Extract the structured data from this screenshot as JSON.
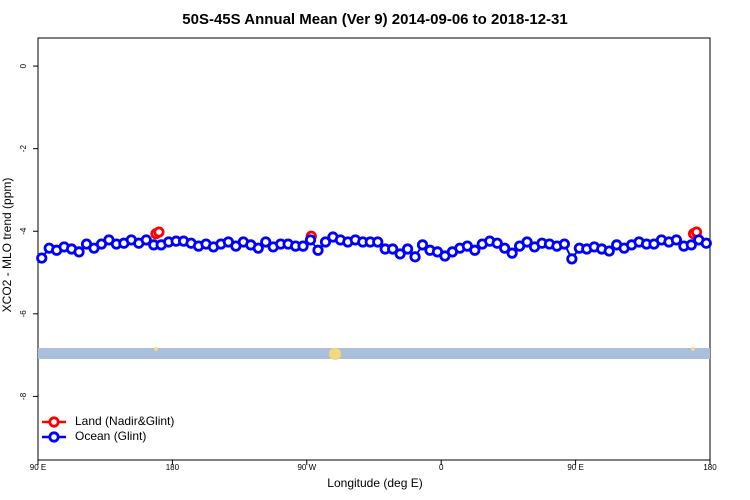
{
  "chart_data": {
    "type": "scatter",
    "title": "50S-45S Annual Mean (Ver 9)   2014-09-06 to 2018-12-31",
    "x_label": "Longitude (deg E)",
    "y_label": "XCO2 - MLO trend (ppm)",
    "xlim": [
      90,
      540
    ],
    "ylim": [
      -9.54,
      0.68
    ],
    "xticks": [
      {
        "value": 90,
        "label": "90 E"
      },
      180,
      {
        "value": 270,
        "label": "90 W"
      },
      {
        "value": 360,
        "label": "0"
      },
      {
        "value": 450,
        "label": "90 E"
      },
      {
        "value": 540,
        "label": "180"
      }
    ],
    "yticks": [
      0,
      -2,
      -4,
      -6,
      -8
    ],
    "legend": "bottom-left",
    "series": [
      {
        "name": "Land (Nadir&Glint)",
        "color": "#ff0000",
        "x": [
          169,
          171,
          273,
          529,
          531
        ],
        "values": [
          -4.06,
          -4.02,
          -4.12,
          -4.06,
          -4.02
        ]
      },
      {
        "name": "Ocean (Glint)",
        "color": "#0000ff",
        "x": [
          92.5,
          97.5,
          102.5,
          107.5,
          112.5,
          117.5,
          122.5,
          127.5,
          132.5,
          137.5,
          142.5,
          147.5,
          152.5,
          157.5,
          162.5,
          167.5,
          172.5,
          177.5,
          182.5,
          187.5,
          192.5,
          197.5,
          202.5,
          207.5,
          212.5,
          217.5,
          222.5,
          227.5,
          232.5,
          237.5,
          242.5,
          247.5,
          252.5,
          257.5,
          262.5,
          267.5,
          272.5,
          277.5,
          282.5,
          287.5,
          292.5,
          297.5,
          302.5,
          307.5,
          312.5,
          317.5,
          322.5,
          327.5,
          332.5,
          337.5,
          342.5,
          347.5,
          352.5,
          357.5,
          362.5,
          367.5,
          372.5,
          377.5,
          382.5,
          387.5,
          392.5,
          397.5,
          402.5,
          407.5,
          412.5,
          417.5,
          422.5,
          427.5,
          432.5,
          437.5,
          442.5,
          447.5,
          452.5,
          457.5,
          462.5,
          467.5,
          472.5,
          477.5,
          482.5,
          487.5,
          492.5,
          497.5,
          502.5,
          507.5,
          512.5,
          517.5,
          522.5,
          527.5,
          532.5,
          537.5
        ],
        "values": [
          -4.65,
          -4.41,
          -4.46,
          -4.38,
          -4.43,
          -4.5,
          -4.31,
          -4.41,
          -4.31,
          -4.21,
          -4.31,
          -4.29,
          -4.21,
          -4.29,
          -4.21,
          -4.33,
          -4.33,
          -4.26,
          -4.24,
          -4.24,
          -4.29,
          -4.36,
          -4.31,
          -4.38,
          -4.31,
          -4.26,
          -4.36,
          -4.26,
          -4.33,
          -4.41,
          -4.26,
          -4.38,
          -4.31,
          -4.31,
          -4.36,
          -4.36,
          -4.21,
          -4.46,
          -4.26,
          -4.14,
          -4.21,
          -4.26,
          -4.21,
          -4.26,
          -4.26,
          -4.26,
          -4.43,
          -4.43,
          -4.55,
          -4.43,
          -4.62,
          -4.33,
          -4.46,
          -4.5,
          -4.6,
          -4.5,
          -4.41,
          -4.36,
          -4.46,
          -4.31,
          -4.24,
          -4.29,
          -4.41,
          -4.53,
          -4.36,
          -4.26,
          -4.38,
          -4.29,
          -4.31,
          -4.36,
          -4.31,
          -4.67,
          -4.41,
          -4.43,
          -4.38,
          -4.43,
          -4.48,
          -4.33,
          -4.41,
          -4.33,
          -4.26,
          -4.31,
          -4.31,
          -4.21,
          -4.26,
          -4.21,
          -4.36,
          -4.33,
          -4.21,
          -4.29
        ]
      }
    ]
  }
}
